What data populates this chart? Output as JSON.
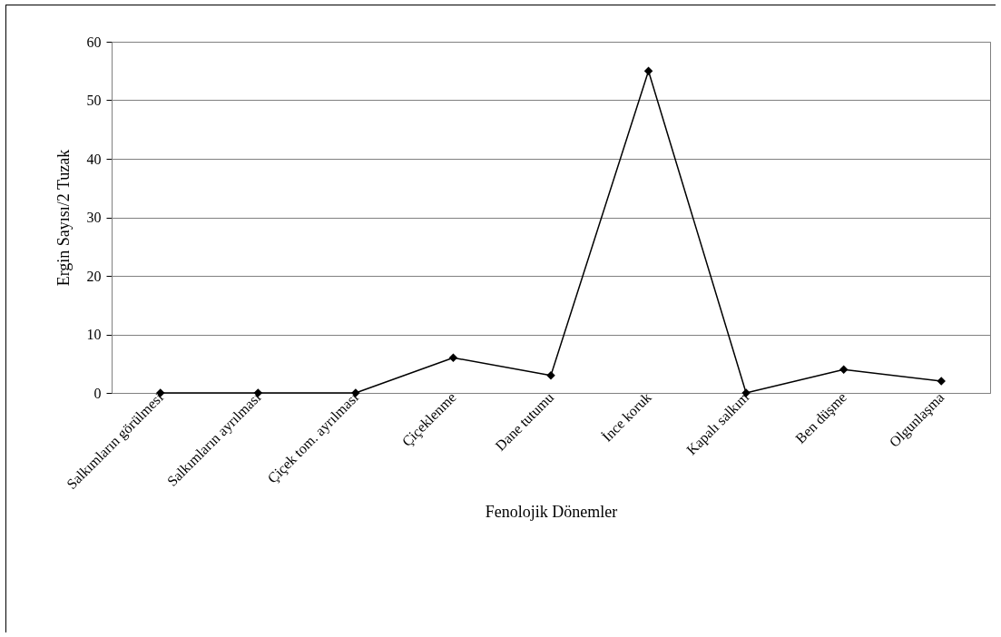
{
  "chart_data": {
    "type": "line",
    "xlabel": "Fenolojik Dönemler",
    "ylabel": "Ergin Sayısı/2 Tuzak",
    "categories": [
      "Salkımların görülmesi",
      "Salkımların ayrılması",
      "Çiçek tom. ayrılması",
      "Çiçeklenme",
      "Dane tutumu",
      "İnce koruk",
      "Kapalı salkım",
      "Ben düşme",
      "Olgunlaşma"
    ],
    "series": [
      {
        "color": "#000000",
        "values": [
          0,
          0,
          0,
          6,
          3,
          55,
          0,
          4,
          2
        ]
      }
    ],
    "ylim": [
      0,
      60
    ],
    "yticks": [
      0,
      10,
      20,
      30,
      40,
      50,
      60
    ],
    "grid": "y",
    "legend": false,
    "marker": "diamond",
    "line_style": "solid"
  }
}
